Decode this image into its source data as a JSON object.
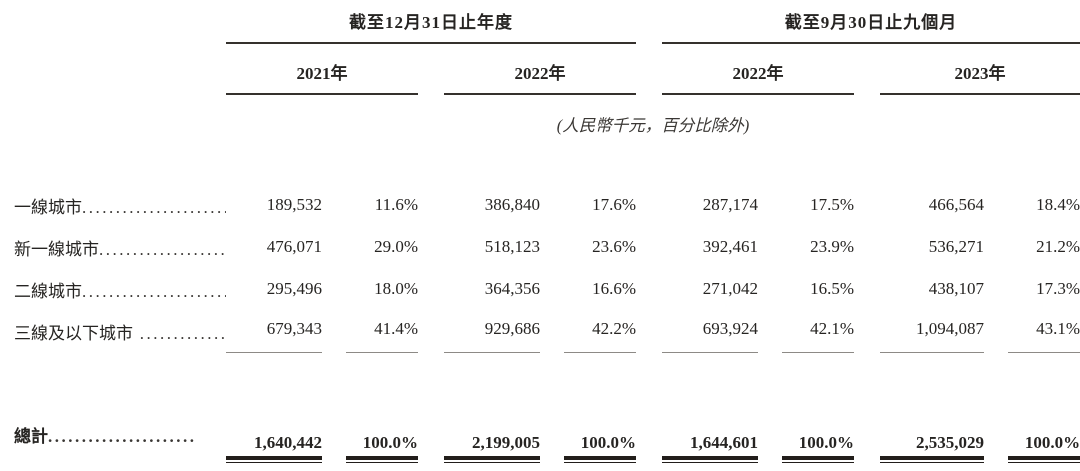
{
  "table": {
    "col_groups": [
      {
        "title": "截至12月31日止年度",
        "years": [
          "2021年",
          "2022年"
        ]
      },
      {
        "title": "截至9月30日止九個月",
        "years": [
          "2022年",
          "2023年"
        ]
      }
    ],
    "unit_note": "(人民幣千元，百分比除外)",
    "rows": [
      {
        "label": "一線城市",
        "dots": "......................",
        "values": [
          "189,532",
          "11.6%",
          "386,840",
          "17.6%",
          "287,174",
          "17.5%",
          "466,564",
          "18.4%"
        ]
      },
      {
        "label": "新一線城市",
        "dots": "......................",
        "values": [
          "476,071",
          "29.0%",
          "518,123",
          "23.6%",
          "392,461",
          "23.9%",
          "536,271",
          "21.2%"
        ]
      },
      {
        "label": "二線城市",
        "dots": "......................",
        "values": [
          "295,496",
          "18.0%",
          "364,356",
          "16.6%",
          "271,042",
          "16.5%",
          "438,107",
          "17.3%"
        ]
      },
      {
        "label": "三線及以下城市",
        "dots": " ....................",
        "values": [
          "679,343",
          "41.4%",
          "929,686",
          "42.2%",
          "693,924",
          "42.1%",
          "1,094,087",
          "43.1%"
        ]
      }
    ],
    "total": {
      "label": "總計",
      "dots": "......................",
      "values": [
        "1,640,442",
        "100.0%",
        "2,199,005",
        "100.0%",
        "1,644,601",
        "100.0%",
        "2,535,029",
        "100.0%"
      ]
    }
  },
  "colors": {
    "text": "#262422",
    "light_rule": "#8d8a86",
    "heavy_rule": "#221e1b"
  }
}
